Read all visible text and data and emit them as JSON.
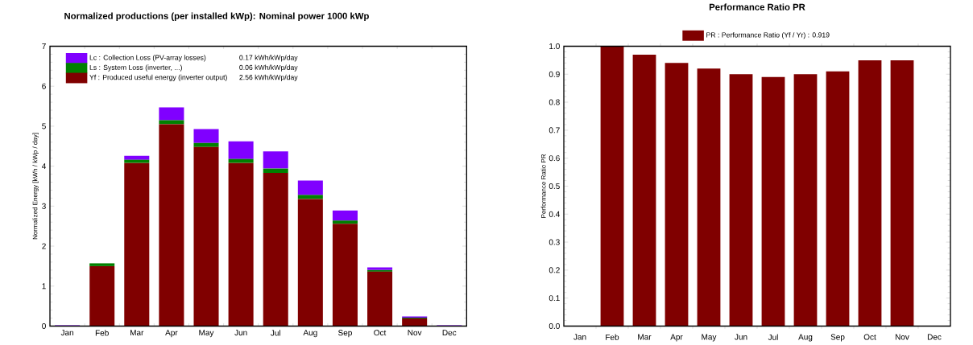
{
  "chart_data": [
    {
      "type": "bar",
      "stacked": true,
      "title": "Normalized productions (per installed kWp):   Nominal power 1000 kWp",
      "ylabel": "Normalized   Energy   [kWh / kWp / day]",
      "categories": [
        "Jan",
        "Feb",
        "Mar",
        "Apr",
        "May",
        "Jun",
        "Jul",
        "Aug",
        "Sep",
        "Oct",
        "Nov",
        "Dec"
      ],
      "series": [
        {
          "name": "Yf : Produced useful energy  (inverter output)",
          "color": "#800000",
          "values": [
            0,
            1.5,
            4.08,
            5.05,
            4.48,
            4.08,
            3.83,
            3.18,
            2.56,
            1.36,
            0.19,
            0
          ]
        },
        {
          "name": "Ls : System Loss  (inverter, ...)",
          "color": "#008000",
          "values": [
            0,
            0.07,
            0.08,
            0.1,
            0.1,
            0.1,
            0.11,
            0.1,
            0.08,
            0.04,
            0.02,
            0
          ]
        },
        {
          "name": "Lc : Collection Loss (PV-array losses)",
          "color": "#8000ff",
          "values": [
            0.02,
            0,
            0.1,
            0.32,
            0.35,
            0.44,
            0.43,
            0.36,
            0.25,
            0.07,
            0.03,
            0.02
          ]
        }
      ],
      "annotations": [
        "0.17 kWh/kWp/day",
        "0.06 kWh/kWp/day",
        "2.56 kWh/kWp/day"
      ],
      "ylim": [
        0,
        7
      ],
      "yticks": [
        0,
        1,
        2,
        3,
        4,
        5,
        6,
        7
      ],
      "legend": "top left"
    },
    {
      "type": "bar",
      "title": "Performance  Ratio  PR",
      "ylabel": "Performance   Ratio   PR",
      "categories": [
        "Jan",
        "Feb",
        "Mar",
        "Apr",
        "May",
        "Jun",
        "Jul",
        "Aug",
        "Sep",
        "Oct",
        "Nov",
        "Dec"
      ],
      "series": [
        {
          "name": "PR : Performance Ratio (Yf / Yr) :  0.919",
          "color": "#800000",
          "values": [
            0,
            1.0,
            0.97,
            0.94,
            0.92,
            0.9,
            0.89,
            0.9,
            0.91,
            0.95,
            0.95,
            0
          ]
        }
      ],
      "ylim": [
        0,
        1
      ],
      "yticks": [
        {
          "value": 0,
          "label": "0.0"
        },
        0.1,
        0.2,
        0.3,
        0.4,
        0.5,
        0.6,
        0.7,
        0.8,
        0.9,
        {
          "value": 1,
          "label": "1.0"
        }
      ],
      "legend": "top"
    }
  ]
}
